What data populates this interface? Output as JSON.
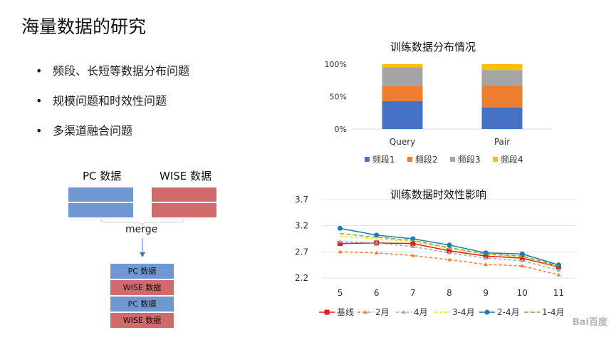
{
  "slide": {
    "title": "海量数据的研究",
    "bullets": [
      "频段、长短等数据分布问题",
      "规模问题和时效性问题",
      "多渠道融合问题"
    ]
  },
  "diagram": {
    "pc_label": "PC 数据",
    "wise_label": "WISE 数据",
    "merge_label": "merge",
    "merged_rows": [
      "PC 数据",
      "WISE 数据",
      "PC 数据",
      "WISE 数据"
    ]
  },
  "watermark": "Bai百度",
  "chart_data": [
    {
      "type": "bar",
      "stacked": true,
      "title": "训练数据分布情况",
      "categories": [
        "Query",
        "Pair"
      ],
      "yticks": [
        "0%",
        "50%",
        "100%"
      ],
      "ylim": [
        0,
        100
      ],
      "series": [
        {
          "name": "频段1",
          "color": "#4472c4",
          "values": [
            43,
            33
          ]
        },
        {
          "name": "频段2",
          "color": "#ed7d31",
          "values": [
            23,
            34
          ]
        },
        {
          "name": "频段3",
          "color": "#a5a5a5",
          "values": [
            29,
            24
          ]
        },
        {
          "name": "频段4",
          "color": "#ffc000",
          "values": [
            5,
            9
          ]
        }
      ],
      "legend": "bottom"
    },
    {
      "type": "line",
      "title": "训练数据时效性影响",
      "x": [
        5,
        6,
        7,
        8,
        9,
        10,
        11
      ],
      "yticks": [
        "2.2",
        "2.7",
        "3.2",
        "3.7"
      ],
      "ylim": [
        2.2,
        3.7
      ],
      "series": [
        {
          "name": "基线",
          "color": "#e41a1c",
          "values": [
            2.86,
            2.87,
            2.86,
            2.72,
            2.62,
            2.58,
            2.41
          ]
        },
        {
          "name": "2月",
          "color": "#ed7d31",
          "values": [
            2.7,
            2.68,
            2.63,
            2.55,
            2.46,
            2.43,
            2.26
          ]
        },
        {
          "name": "4月",
          "color": "#a5a5a5",
          "values": [
            2.9,
            2.87,
            2.8,
            2.68,
            2.58,
            2.53,
            2.35
          ]
        },
        {
          "name": "3-4月",
          "color": "#ffd700",
          "values": [
            3.0,
            2.95,
            2.9,
            2.76,
            2.65,
            2.6,
            2.42
          ]
        },
        {
          "name": "2-4月",
          "color": "#1f78b4",
          "values": [
            3.15,
            3.02,
            2.95,
            2.83,
            2.68,
            2.66,
            2.45
          ]
        },
        {
          "name": "1-4月",
          "color": "#70ad47",
          "values": [
            3.05,
            2.98,
            2.92,
            2.78,
            2.66,
            2.62,
            2.43
          ]
        }
      ],
      "legend": "bottom"
    }
  ]
}
